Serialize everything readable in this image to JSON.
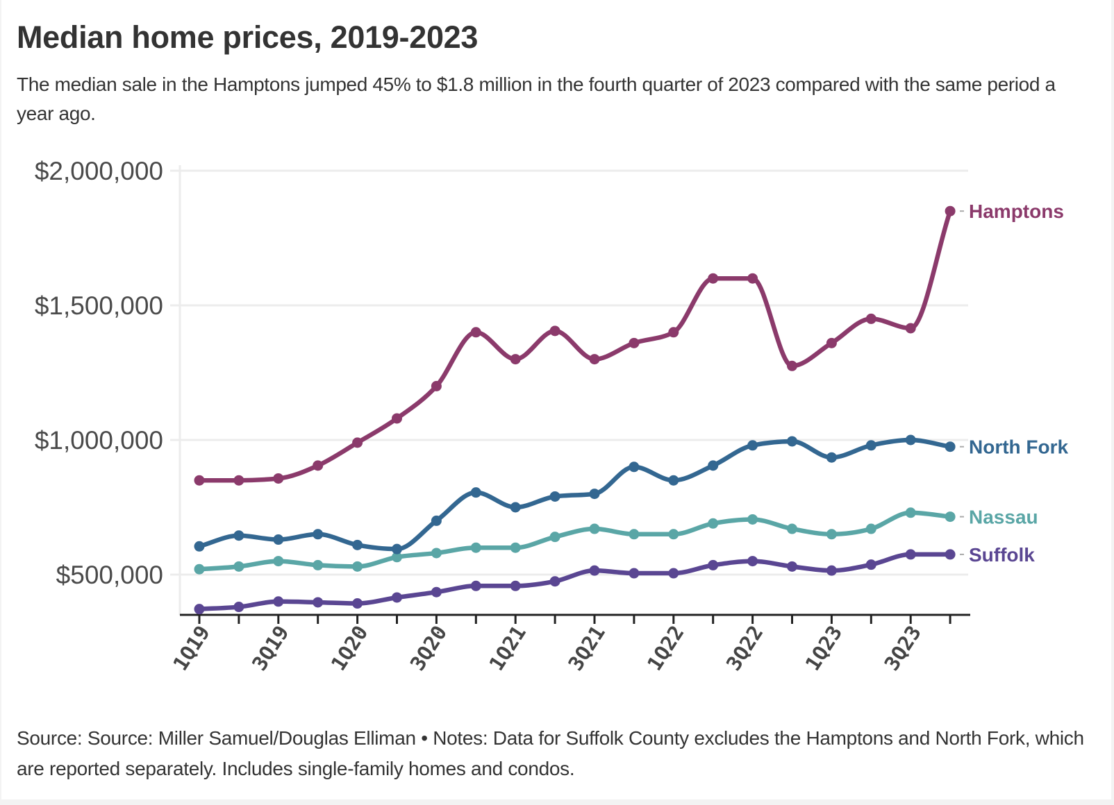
{
  "header": {
    "title": "Median home prices, 2019-2023",
    "subtitle": "The median sale in the Hamptons jumped 45% to $1.8 million in the fourth quarter of 2023 compared with the same period a year ago."
  },
  "footer": {
    "text": "Source: Source: Miller Samuel/Douglas Elliman • Notes: Data for Suffolk County excludes the Hamptons and North Fork, which are reported separately. Includes single-family homes and condos."
  },
  "chart_data": {
    "type": "line",
    "title": "Median home prices, 2019-2023",
    "xlabel": "",
    "ylabel": "",
    "x": [
      "1Q19",
      "2Q19",
      "3Q19",
      "4Q19",
      "1Q20",
      "2Q20",
      "3Q20",
      "4Q20",
      "1Q21",
      "2Q21",
      "3Q21",
      "4Q21",
      "1Q22",
      "2Q22",
      "3Q22",
      "4Q22",
      "1Q23",
      "2Q23",
      "3Q23",
      "4Q23"
    ],
    "x_tick_labels": [
      "1Q19",
      "3Q19",
      "1Q20",
      "3Q20",
      "1Q21",
      "3Q21",
      "1Q22",
      "3Q22",
      "1Q23",
      "3Q23"
    ],
    "y_ticks": [
      500000,
      1000000,
      1500000,
      2000000
    ],
    "y_tick_labels": [
      "$500,000",
      "$1,000,000",
      "$1,500,000",
      "$2,000,000"
    ],
    "ylim": [
      350000,
      2000000
    ],
    "grid": true,
    "legend": "direct-labels-right",
    "series": [
      {
        "name": "Hamptons",
        "color": "#8b3a6b",
        "values": [
          850000,
          850000,
          857000,
          905000,
          990000,
          1080000,
          1200000,
          1400000,
          1300000,
          1405000,
          1300000,
          1360000,
          1400000,
          1600000,
          1600000,
          1275000,
          1360000,
          1450000,
          1415000,
          1850000
        ]
      },
      {
        "name": "North Fork",
        "color": "#336791",
        "values": [
          605000,
          645000,
          630000,
          650000,
          610000,
          595000,
          700000,
          805000,
          750000,
          790000,
          800000,
          900000,
          850000,
          905000,
          980000,
          995000,
          935000,
          980000,
          1000000,
          975000
        ]
      },
      {
        "name": "Nassau",
        "color": "#5aa6a6",
        "values": [
          520000,
          530000,
          550000,
          535000,
          530000,
          565000,
          580000,
          600000,
          600000,
          640000,
          670000,
          650000,
          650000,
          690000,
          705000,
          670000,
          650000,
          670000,
          730000,
          715000
        ]
      },
      {
        "name": "Suffolk",
        "color": "#5a4692",
        "values": [
          372000,
          380000,
          400000,
          397000,
          393000,
          415000,
          435000,
          458000,
          458000,
          475000,
          515000,
          505000,
          505000,
          535000,
          550000,
          530000,
          515000,
          537000,
          575000,
          575000
        ]
      }
    ]
  },
  "colors": {
    "text": "#333333",
    "axis": "#222222",
    "grid": "#ececec",
    "background": "#ffffff",
    "page_background": "#f3f3f3"
  }
}
